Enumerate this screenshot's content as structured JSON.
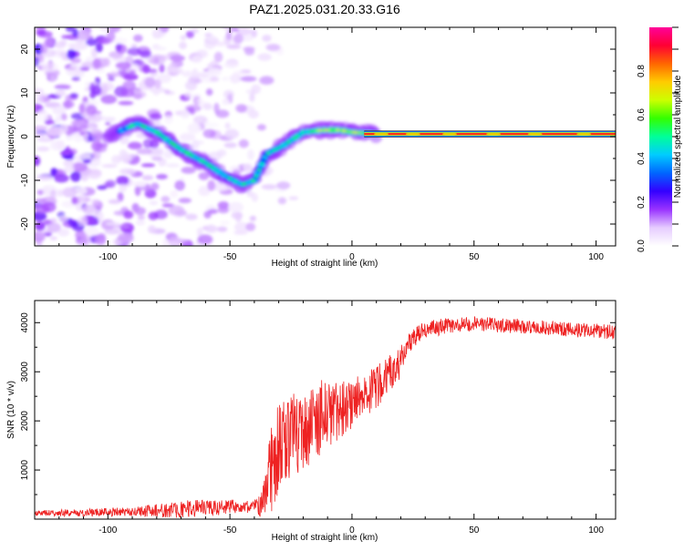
{
  "title": "PAZ1.2025.031.20.33.G16",
  "chart_data": [
    {
      "type": "heatmap",
      "xlabel": "Height of straight line (km)",
      "ylabel": "Frequency (Hz)",
      "xlim": [
        -130,
        108
      ],
      "ylim": [
        -25,
        25
      ],
      "xticks": [
        -100,
        -50,
        0,
        50,
        100
      ],
      "yticks": [
        -20,
        -10,
        0,
        10,
        20
      ],
      "ridge": {
        "x": [
          -100,
          -88,
          -80,
          -70,
          -60,
          -52,
          -45,
          -40,
          -35,
          -28,
          -20,
          -12,
          -5,
          0,
          5,
          10,
          30,
          60,
          108
        ],
        "frequency": [
          0,
          3,
          1,
          -3,
          -6,
          -9,
          -11,
          -10,
          -4,
          -2,
          1,
          1.5,
          1.5,
          1,
          0.8,
          0.6,
          0.6,
          0.6,
          0.6
        ]
      },
      "colorbar": {
        "label": "Normalized spectral amplitude",
        "range": [
          0,
          1
        ],
        "ticks": [
          "0.0",
          "0.2",
          "0.4",
          "0.6",
          "0.8"
        ],
        "colors": [
          "#ffffff",
          "#e6ccff",
          "#9933ff",
          "#3300ff",
          "#0066ff",
          "#00ccff",
          "#00ff99",
          "#33ff00",
          "#ccff00",
          "#ffcc00",
          "#ff6600",
          "#ff0033",
          "#ff0099"
        ]
      }
    },
    {
      "type": "line",
      "xlabel": "Height of straight line (km)",
      "ylabel": "SNR (10 * v/v)",
      "xlim": [
        -130,
        108
      ],
      "ylim": [
        0,
        4450
      ],
      "xticks": [
        -100,
        -50,
        0,
        50,
        100
      ],
      "yticks": [
        1000,
        2000,
        3000,
        4000
      ],
      "color": "#ee2222",
      "envelope": {
        "x": [
          -130,
          -90,
          -70,
          -50,
          -40,
          -35,
          -32,
          -28,
          -20,
          -10,
          0,
          10,
          20,
          25,
          30,
          40,
          50,
          60,
          80,
          108
        ],
        "mean": [
          120,
          150,
          200,
          250,
          250,
          550,
          1300,
          1600,
          1800,
          2100,
          2350,
          2700,
          3200,
          3700,
          3850,
          3950,
          3980,
          3950,
          3900,
          3800
        ],
        "spread": [
          60,
          90,
          180,
          150,
          120,
          600,
          1100,
          900,
          800,
          700,
          500,
          450,
          350,
          200,
          180,
          160,
          150,
          150,
          150,
          160
        ]
      }
    }
  ]
}
